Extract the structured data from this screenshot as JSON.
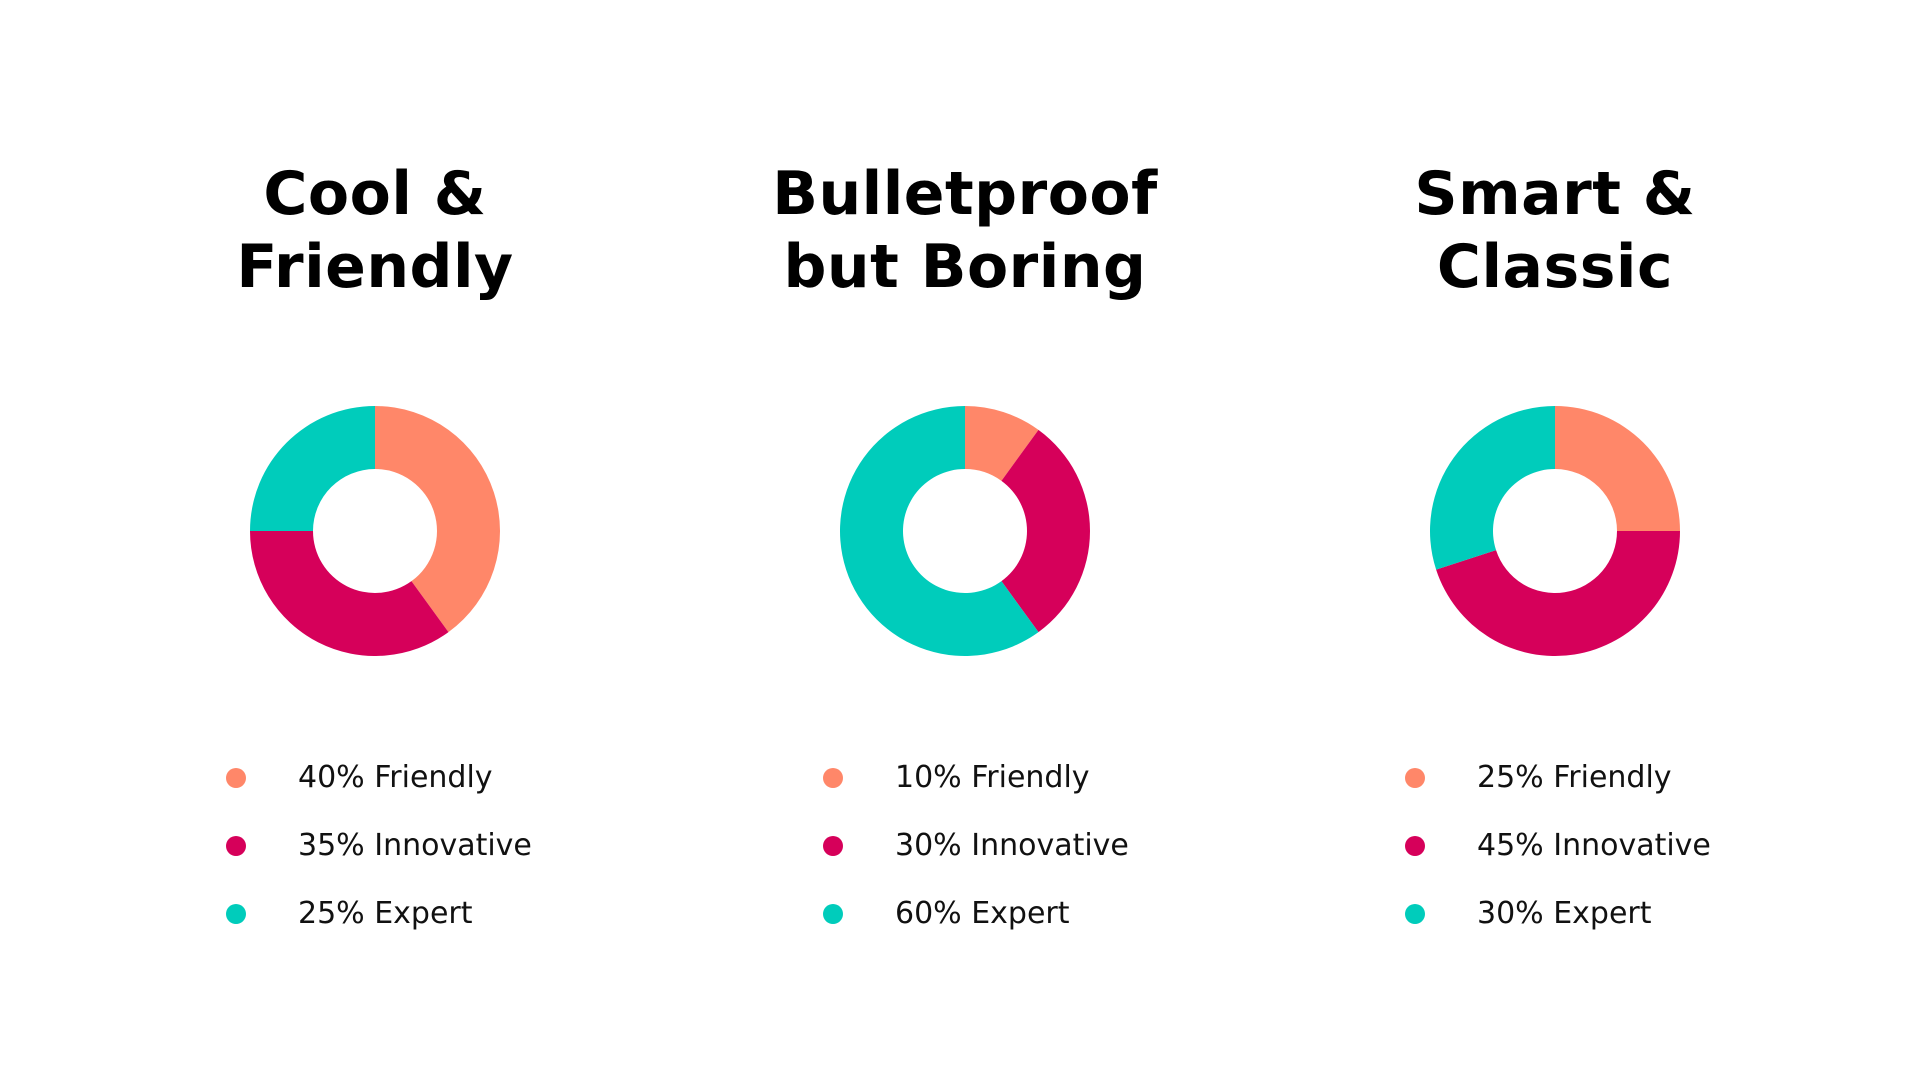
{
  "colors": {
    "friendly": "#FF8769",
    "innovative": "#D6005A",
    "expert": "#00CCBB",
    "background": "#FFFFFF"
  },
  "chart_data": [
    {
      "type": "pie",
      "title_lines": [
        "Cool &",
        "Friendly"
      ],
      "categories": [
        "Friendly",
        "Innovative",
        "Expert"
      ],
      "values": [
        40,
        35,
        25
      ],
      "legend": [
        "40% Friendly",
        "35% Innovative",
        "25% Expert"
      ]
    },
    {
      "type": "pie",
      "title_lines": [
        "Bulletproof",
        "but Boring"
      ],
      "categories": [
        "Friendly",
        "Innovative",
        "Expert"
      ],
      "values": [
        10,
        30,
        60
      ],
      "legend": [
        "10% Friendly",
        "30% Innovative",
        "60% Expert"
      ]
    },
    {
      "type": "pie",
      "title_lines": [
        "Smart &",
        "Classic"
      ],
      "categories": [
        "Friendly",
        "Innovative",
        "Expert"
      ],
      "values": [
        25,
        45,
        30
      ],
      "legend": [
        "25% Friendly",
        "45% Innovative",
        "30% Expert"
      ]
    }
  ]
}
